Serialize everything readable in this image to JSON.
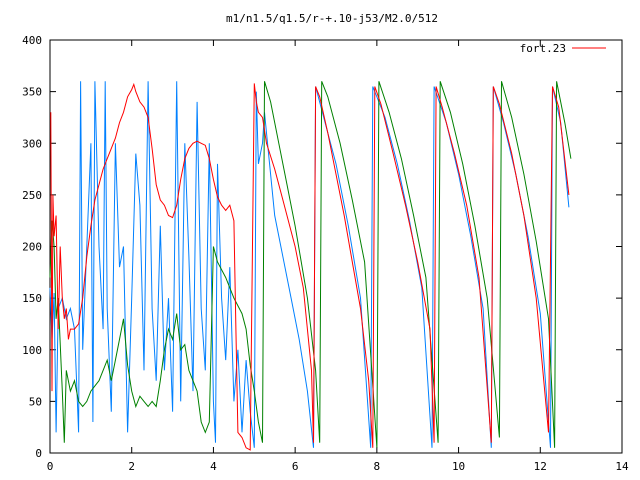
{
  "chart_data": {
    "type": "line",
    "title": "m1/n1.5/q1.5/r-+.10-j53/M2.0/512",
    "xlabel": "",
    "ylabel": "",
    "xlim": [
      0,
      14
    ],
    "ylim": [
      0,
      400
    ],
    "x_ticks": [
      0,
      2,
      4,
      6,
      8,
      10,
      12,
      14
    ],
    "y_ticks": [
      0,
      50,
      100,
      150,
      200,
      250,
      300,
      350,
      400
    ],
    "x_tick_labels": [
      "0",
      "2",
      "4",
      "6",
      "8",
      "10",
      "12",
      "14"
    ],
    "y_tick_labels": [
      "0",
      "50",
      "100",
      "150",
      "200",
      "250",
      "300",
      "350",
      "400"
    ],
    "grid": false,
    "legend_position": "top-right",
    "legend": [
      {
        "label": "fort.23",
        "color": "#ff0000"
      }
    ],
    "series": [
      {
        "name": "fort.23",
        "color": "#ff0000",
        "points": [
          [
            0.02,
            330
          ],
          [
            0.05,
            60
          ],
          [
            0.07,
            250
          ],
          [
            0.1,
            210
          ],
          [
            0.15,
            230
          ],
          [
            0.2,
            120
          ],
          [
            0.25,
            200
          ],
          [
            0.3,
            150
          ],
          [
            0.35,
            130
          ],
          [
            0.4,
            140
          ],
          [
            0.45,
            110
          ],
          [
            0.5,
            120
          ],
          [
            0.6,
            120
          ],
          [
            0.7,
            125
          ],
          [
            0.8,
            150
          ],
          [
            0.9,
            190
          ],
          [
            1.0,
            220
          ],
          [
            1.1,
            245
          ],
          [
            1.2,
            260
          ],
          [
            1.3,
            275
          ],
          [
            1.4,
            285
          ],
          [
            1.5,
            295
          ],
          [
            1.6,
            305
          ],
          [
            1.7,
            320
          ],
          [
            1.8,
            330
          ],
          [
            1.9,
            345
          ],
          [
            2.0,
            352
          ],
          [
            2.05,
            357
          ],
          [
            2.1,
            350
          ],
          [
            2.2,
            340
          ],
          [
            2.3,
            335
          ],
          [
            2.4,
            325
          ],
          [
            2.5,
            295
          ],
          [
            2.6,
            260
          ],
          [
            2.7,
            245
          ],
          [
            2.8,
            240
          ],
          [
            2.9,
            230
          ],
          [
            3.0,
            228
          ],
          [
            3.1,
            240
          ],
          [
            3.2,
            265
          ],
          [
            3.3,
            285
          ],
          [
            3.4,
            295
          ],
          [
            3.5,
            300
          ],
          [
            3.6,
            302
          ],
          [
            3.7,
            300
          ],
          [
            3.8,
            298
          ],
          [
            3.9,
            285
          ],
          [
            4.0,
            265
          ],
          [
            4.1,
            248
          ],
          [
            4.2,
            240
          ],
          [
            4.3,
            235
          ],
          [
            4.4,
            240
          ],
          [
            4.5,
            225
          ],
          [
            4.55,
            120
          ],
          [
            4.6,
            20
          ],
          [
            4.7,
            15
          ],
          [
            4.8,
            5
          ],
          [
            4.9,
            3
          ],
          [
            5.0,
            358
          ],
          [
            5.05,
            340
          ],
          [
            5.1,
            330
          ],
          [
            5.2,
            325
          ],
          [
            5.3,
            300
          ],
          [
            5.5,
            275
          ],
          [
            5.7,
            245
          ],
          [
            6.0,
            200
          ],
          [
            6.2,
            160
          ],
          [
            6.4,
            80
          ],
          [
            6.45,
            10
          ],
          [
            6.5,
            355
          ],
          [
            6.6,
            345
          ],
          [
            6.8,
            310
          ],
          [
            7.0,
            270
          ],
          [
            7.2,
            230
          ],
          [
            7.4,
            185
          ],
          [
            7.6,
            140
          ],
          [
            7.8,
            70
          ],
          [
            7.9,
            5
          ],
          [
            7.95,
            355
          ],
          [
            8.1,
            338
          ],
          [
            8.4,
            290
          ],
          [
            8.7,
            240
          ],
          [
            9.0,
            185
          ],
          [
            9.3,
            120
          ],
          [
            9.4,
            10
          ],
          [
            9.45,
            355
          ],
          [
            9.6,
            335
          ],
          [
            9.9,
            290
          ],
          [
            10.2,
            240
          ],
          [
            10.5,
            170
          ],
          [
            10.8,
            10
          ],
          [
            10.85,
            355
          ],
          [
            11.0,
            338
          ],
          [
            11.3,
            290
          ],
          [
            11.6,
            230
          ],
          [
            11.9,
            150
          ],
          [
            12.2,
            20
          ],
          [
            12.3,
            355
          ],
          [
            12.45,
            335
          ],
          [
            12.7,
            250
          ]
        ]
      },
      {
        "name": "",
        "color": "#008000",
        "points": [
          [
            0.0,
            170
          ],
          [
            0.05,
            225
          ],
          [
            0.1,
            200
          ],
          [
            0.15,
            130
          ],
          [
            0.2,
            150
          ],
          [
            0.3,
            60
          ],
          [
            0.35,
            10
          ],
          [
            0.4,
            80
          ],
          [
            0.5,
            60
          ],
          [
            0.6,
            70
          ],
          [
            0.7,
            50
          ],
          [
            0.8,
            45
          ],
          [
            0.9,
            50
          ],
          [
            1.0,
            60
          ],
          [
            1.1,
            65
          ],
          [
            1.2,
            70
          ],
          [
            1.3,
            80
          ],
          [
            1.4,
            90
          ],
          [
            1.5,
            70
          ],
          [
            1.6,
            90
          ],
          [
            1.7,
            110
          ],
          [
            1.8,
            130
          ],
          [
            1.9,
            85
          ],
          [
            2.0,
            60
          ],
          [
            2.1,
            45
          ],
          [
            2.2,
            55
          ],
          [
            2.3,
            50
          ],
          [
            2.4,
            45
          ],
          [
            2.5,
            50
          ],
          [
            2.6,
            45
          ],
          [
            2.7,
            70
          ],
          [
            2.8,
            100
          ],
          [
            2.9,
            120
          ],
          [
            3.0,
            110
          ],
          [
            3.1,
            135
          ],
          [
            3.2,
            100
          ],
          [
            3.3,
            105
          ],
          [
            3.4,
            80
          ],
          [
            3.5,
            70
          ],
          [
            3.6,
            60
          ],
          [
            3.7,
            30
          ],
          [
            3.8,
            20
          ],
          [
            3.9,
            30
          ],
          [
            4.0,
            200
          ],
          [
            4.1,
            185
          ],
          [
            4.3,
            170
          ],
          [
            4.5,
            150
          ],
          [
            4.7,
            135
          ],
          [
            4.8,
            120
          ],
          [
            4.9,
            85
          ],
          [
            5.0,
            60
          ],
          [
            5.1,
            30
          ],
          [
            5.2,
            10
          ],
          [
            5.25,
            360
          ],
          [
            5.4,
            340
          ],
          [
            5.6,
            300
          ],
          [
            5.8,
            260
          ],
          [
            6.0,
            220
          ],
          [
            6.3,
            150
          ],
          [
            6.5,
            80
          ],
          [
            6.6,
            10
          ],
          [
            6.65,
            360
          ],
          [
            6.8,
            345
          ],
          [
            7.1,
            300
          ],
          [
            7.4,
            245
          ],
          [
            7.7,
            185
          ],
          [
            8.0,
            5
          ],
          [
            8.05,
            360
          ],
          [
            8.3,
            330
          ],
          [
            8.6,
            285
          ],
          [
            8.9,
            230
          ],
          [
            9.2,
            170
          ],
          [
            9.5,
            10
          ],
          [
            9.55,
            360
          ],
          [
            9.8,
            330
          ],
          [
            10.1,
            280
          ],
          [
            10.4,
            220
          ],
          [
            10.7,
            150
          ],
          [
            11.0,
            15
          ],
          [
            11.05,
            360
          ],
          [
            11.3,
            325
          ],
          [
            11.6,
            270
          ],
          [
            11.9,
            205
          ],
          [
            12.2,
            130
          ],
          [
            12.35,
            5
          ],
          [
            12.4,
            360
          ],
          [
            12.6,
            320
          ],
          [
            12.75,
            285
          ]
        ]
      },
      {
        "name": "",
        "color": "#0080ff",
        "points": [
          [
            0.0,
            160
          ],
          [
            0.05,
            110
          ],
          [
            0.1,
            155
          ],
          [
            0.15,
            20
          ],
          [
            0.2,
            140
          ],
          [
            0.3,
            150
          ],
          [
            0.4,
            130
          ],
          [
            0.5,
            140
          ],
          [
            0.6,
            120
          ],
          [
            0.7,
            20
          ],
          [
            0.75,
            360
          ],
          [
            0.8,
            100
          ],
          [
            0.9,
            200
          ],
          [
            1.0,
            300
          ],
          [
            1.05,
            30
          ],
          [
            1.1,
            360
          ],
          [
            1.2,
            200
          ],
          [
            1.3,
            120
          ],
          [
            1.35,
            360
          ],
          [
            1.4,
            140
          ],
          [
            1.5,
            40
          ],
          [
            1.6,
            300
          ],
          [
            1.7,
            180
          ],
          [
            1.8,
            200
          ],
          [
            1.9,
            20
          ],
          [
            2.0,
            150
          ],
          [
            2.1,
            290
          ],
          [
            2.2,
            240
          ],
          [
            2.3,
            80
          ],
          [
            2.4,
            360
          ],
          [
            2.5,
            140
          ],
          [
            2.6,
            70
          ],
          [
            2.7,
            220
          ],
          [
            2.8,
            80
          ],
          [
            2.9,
            150
          ],
          [
            3.0,
            40
          ],
          [
            3.1,
            360
          ],
          [
            3.2,
            50
          ],
          [
            3.3,
            300
          ],
          [
            3.4,
            190
          ],
          [
            3.5,
            60
          ],
          [
            3.6,
            340
          ],
          [
            3.7,
            140
          ],
          [
            3.8,
            80
          ],
          [
            3.9,
            300
          ],
          [
            4.0,
            50
          ],
          [
            4.05,
            10
          ],
          [
            4.1,
            280
          ],
          [
            4.2,
            150
          ],
          [
            4.3,
            90
          ],
          [
            4.4,
            180
          ],
          [
            4.5,
            50
          ],
          [
            4.6,
            100
          ],
          [
            4.7,
            20
          ],
          [
            4.8,
            90
          ],
          [
            4.9,
            40
          ],
          [
            5.0,
            5
          ],
          [
            5.05,
            350
          ],
          [
            5.1,
            280
          ],
          [
            5.2,
            300
          ],
          [
            5.25,
            330
          ],
          [
            5.3,
            310
          ],
          [
            5.5,
            230
          ],
          [
            5.7,
            190
          ],
          [
            5.9,
            150
          ],
          [
            6.1,
            110
          ],
          [
            6.3,
            60
          ],
          [
            6.45,
            5
          ],
          [
            6.5,
            355
          ],
          [
            6.7,
            325
          ],
          [
            7.0,
            280
          ],
          [
            7.3,
            220
          ],
          [
            7.6,
            150
          ],
          [
            7.85,
            5
          ],
          [
            7.9,
            355
          ],
          [
            8.2,
            325
          ],
          [
            8.5,
            280
          ],
          [
            8.8,
            225
          ],
          [
            9.1,
            160
          ],
          [
            9.35,
            5
          ],
          [
            9.4,
            355
          ],
          [
            9.7,
            320
          ],
          [
            10.0,
            270
          ],
          [
            10.3,
            210
          ],
          [
            10.6,
            140
          ],
          [
            10.8,
            5
          ],
          [
            10.85,
            355
          ],
          [
            11.1,
            320
          ],
          [
            11.4,
            270
          ],
          [
            11.7,
            210
          ],
          [
            12.0,
            135
          ],
          [
            12.25,
            5
          ],
          [
            12.3,
            355
          ],
          [
            12.5,
            320
          ],
          [
            12.7,
            238
          ]
        ]
      }
    ]
  }
}
